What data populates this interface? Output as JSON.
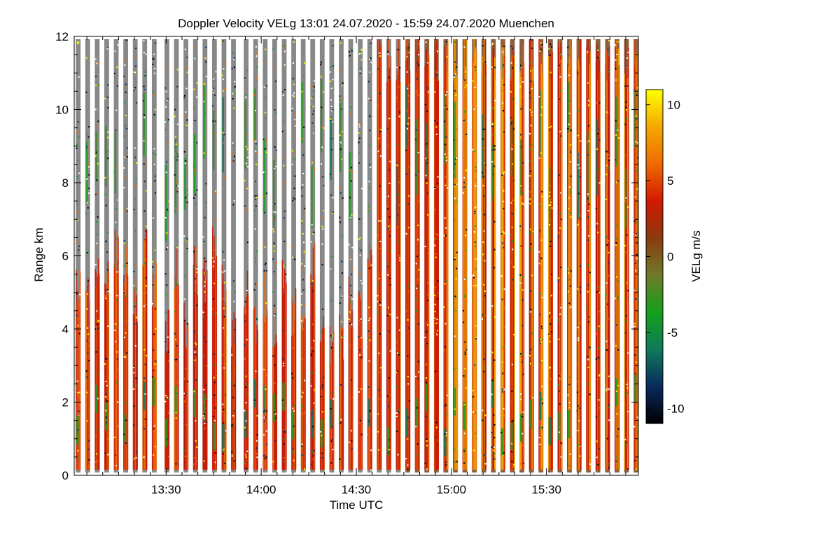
{
  "chart_data": {
    "type": "heatmap",
    "title": "Doppler Velocity VELg   13:01 24.07.2020 - 15:59 24.07.2020 Muenchen",
    "xlabel": "Time UTC",
    "ylabel": "Range km",
    "x_range_minutes_utc": [
      781,
      959
    ],
    "x_ticks": [
      {
        "label": "13:30",
        "minutes": 810
      },
      {
        "label": "14:00",
        "minutes": 840
      },
      {
        "label": "14:30",
        "minutes": 870
      },
      {
        "label": "15:00",
        "minutes": 900
      },
      {
        "label": "15:30",
        "minutes": 930
      }
    ],
    "ylim": [
      0,
      12
    ],
    "y_ticks": [
      "0",
      "2",
      "4",
      "6",
      "8",
      "10",
      "12"
    ],
    "colorbar": {
      "label": "VELg m/s",
      "range": [
        -11,
        11
      ],
      "ticks": [
        "10",
        "5",
        "0",
        "-5",
        "-10"
      ],
      "tick_values": [
        10,
        5,
        0,
        -5,
        -10
      ],
      "colormap": [
        "#000000",
        "#0a2a5e",
        "#0f7a5a",
        "#14a01a",
        "#6e7a2a",
        "#8b3a10",
        "#d21a00",
        "#f06a00",
        "#f5a800",
        "#ffff00"
      ]
    },
    "scans_start_minutes": [
      781.5,
      784.5,
      787.5,
      790.5,
      793.5,
      796.5,
      799.5,
      802.5,
      805.5,
      809.5,
      812.5,
      815.5,
      818.5,
      821.5,
      824.5,
      827.5,
      830.5,
      834.5,
      837.5,
      840.5,
      843.5,
      846.5,
      849.5,
      852.5,
      855.5,
      858.5,
      861.5,
      864.5,
      867.5,
      870.5,
      873.5,
      876.5,
      879.5,
      882.5,
      885.5,
      888.5,
      891.5,
      894.5,
      897.5,
      900.5,
      903.5,
      906.5,
      909.5,
      912.5,
      915.5,
      918.5,
      921.5,
      924.5,
      927.5,
      930.5,
      933.5,
      936.5,
      939.5,
      942.5,
      945.5,
      948.5,
      951.5,
      954.5,
      957.5
    ],
    "background_color": "#888888",
    "missing_color": "#ffffff"
  }
}
